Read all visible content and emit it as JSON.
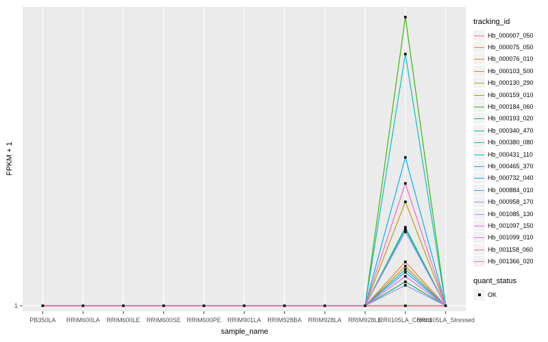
{
  "figure": {
    "x_axis_title": "sample_name",
    "y_axis_title": "FPKM + 1",
    "y_tick_label": "1"
  },
  "legend": {
    "tracking_title": "tracking_id",
    "quant_title": "quant_status",
    "quant_items": [
      {
        "label": "OK",
        "marker": "black-square-point"
      }
    ]
  },
  "colors": {
    "panel_background": "#ebebeb",
    "gridline": "#ffffff",
    "axis_text": "#4d4d4d",
    "tick_mark": "#333333",
    "point_marker": "#000000",
    "legend_key_background": "#f2f2f2"
  },
  "chart_data": {
    "type": "line",
    "title": "",
    "xlabel": "sample_name",
    "ylabel": "FPKM + 1",
    "grid": "ggplot-gray-panel-with-white-gridlines",
    "legend_position": "right",
    "y_axis": {
      "visible_tick_labels": [
        "1"
      ],
      "note_scale": "only the baseline tick '1' is labeled; peak heights are recorded as fractions of the tallest peak"
    },
    "x_categories": [
      "PB350LA",
      "RRIM600LA",
      "RRIM600LE",
      "RRIM600SE",
      "RRIM600PE",
      "RRIM901LA",
      "RRIM928BA",
      "RRIM928LA",
      "RRIM928LE",
      "RRII105LA_Control",
      "RRII105LA_Stressed"
    ],
    "baseline_value": 1,
    "peak_category": "RRII105LA_Control",
    "peak_category_index": 9,
    "quant_status_points": "black point markers at every sample on the baseline and at each series peak",
    "series": [
      {
        "name": "Hb_000007_050",
        "color": "#F8766D",
        "peak_frac": 0.0
      },
      {
        "name": "Hb_000075_050",
        "color": "#EA8331",
        "peak_frac": 0.152
      },
      {
        "name": "Hb_000076_010",
        "color": "#D89000",
        "peak_frac": 0.137
      },
      {
        "name": "Hb_000103_500",
        "color": "#C09B00",
        "peak_frac": 0.36
      },
      {
        "name": "Hb_000130_290",
        "color": "#A3A500",
        "peak_frac": 0.0
      },
      {
        "name": "Hb_000159_010",
        "color": "#7CAE00",
        "peak_frac": 0.0
      },
      {
        "name": "Hb_000184_060",
        "color": "#39B600",
        "peak_frac": 1.0
      },
      {
        "name": "Hb_000193_020",
        "color": "#00BB4E",
        "peak_frac": 0.083
      },
      {
        "name": "Hb_000340_470",
        "color": "#00BF7D",
        "peak_frac": 0.272
      },
      {
        "name": "Hb_000380_080",
        "color": "#00C1A3",
        "peak_frac": 0.265
      },
      {
        "name": "Hb_000431_110",
        "color": "#00BFC4",
        "peak_frac": 0.872
      },
      {
        "name": "Hb_000465_370",
        "color": "#00BAE0",
        "peak_frac": 0.126
      },
      {
        "name": "Hb_000732_040",
        "color": "#00B0F6",
        "peak_frac": 0.514
      },
      {
        "name": "Hb_000884_010",
        "color": "#35A2FF",
        "peak_frac": 0.116
      },
      {
        "name": "Hb_000958_170",
        "color": "#9590FF",
        "peak_frac": 0.071
      },
      {
        "name": "Hb_001085_130",
        "color": "#C77CFF",
        "peak_frac": 0.256
      },
      {
        "name": "Hb_001097_150",
        "color": "#E76BF3",
        "peak_frac": 0.0
      },
      {
        "name": "Hb_001099_010",
        "color": "#FA62DB",
        "peak_frac": 0.102
      },
      {
        "name": "Hb_001158_060",
        "color": "#FF62BC",
        "peak_frac": 0.424
      },
      {
        "name": "Hb_001366_020",
        "color": "#FF6A98",
        "peak_frac": 0.0
      }
    ]
  }
}
